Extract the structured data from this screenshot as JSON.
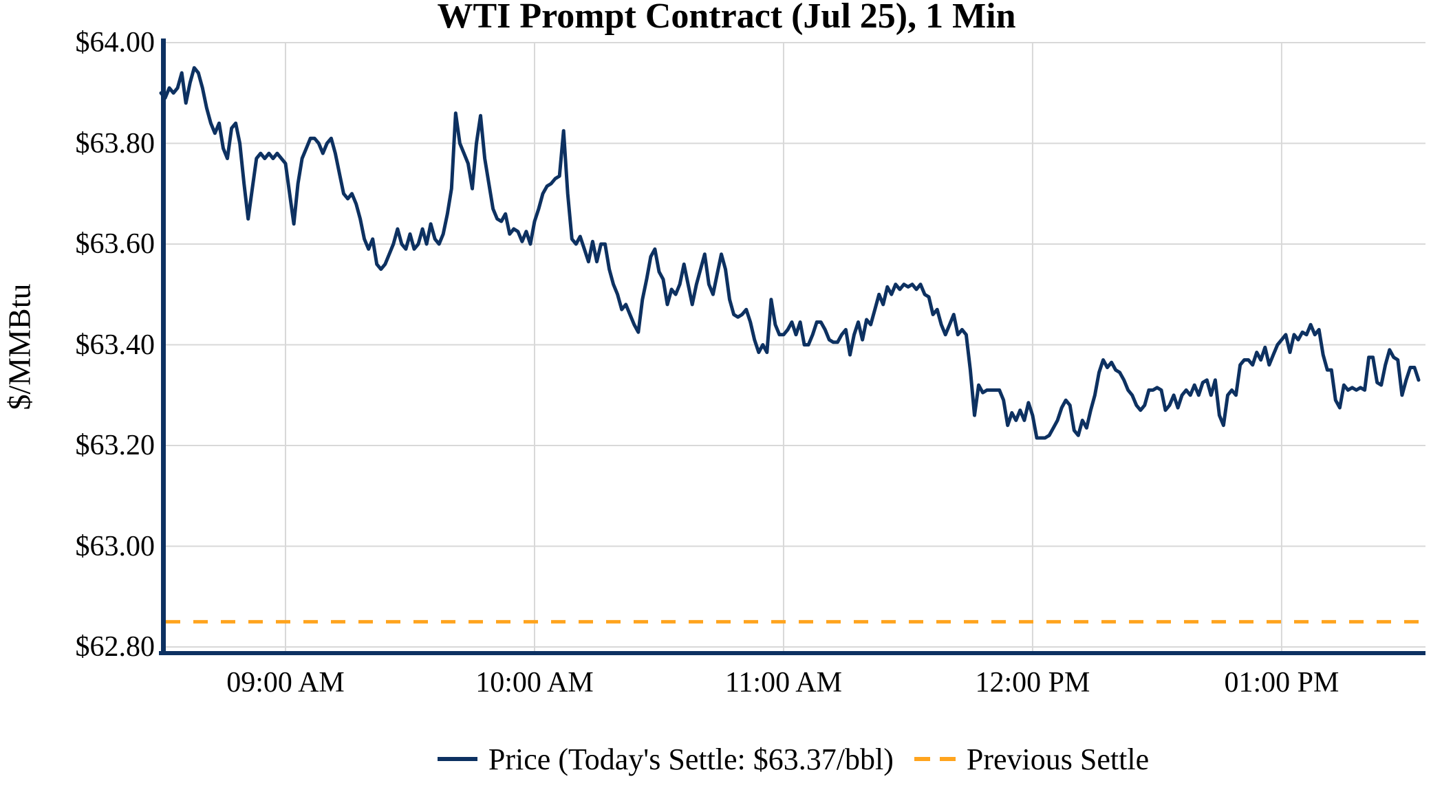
{
  "title": "WTI Prompt Contract (Jul 25), 1 Min",
  "y_axis_label": "$/MMBtu",
  "legend": {
    "price_label": "Price (Today's Settle: $63.37/bbl)",
    "previous_settle_label": "Previous Settle"
  },
  "colors": {
    "price_line": "#0d3161",
    "previous_settle_line": "#FFA41E",
    "gridline": "#d8d8d8",
    "axis_spine": "#0d3161",
    "text": "#000000",
    "background": "#ffffff"
  },
  "chart_data": {
    "type": "line",
    "title": "WTI Prompt Contract (Jul 25), 1 Min",
    "xlabel": "",
    "ylabel": "$/MMBtu",
    "ylim": [
      62.8,
      64.0
    ],
    "grid": true,
    "legend_position": "bottom",
    "y_tick_labels": [
      "$64.00",
      "$63.80",
      "$63.60",
      "$63.40",
      "$63.20",
      "$63.00",
      "$62.80"
    ],
    "y_tick_values": [
      64.0,
      63.8,
      63.6,
      63.4,
      63.2,
      63.0,
      62.8
    ],
    "x_tick_labels": [
      "09:00 AM",
      "10:00 AM",
      "11:00 AM",
      "12:00 PM",
      "01:00 PM"
    ],
    "x_tick_minutes": [
      30,
      90,
      150,
      210,
      270
    ],
    "x_start_time": "08:30 AM",
    "x_end_time": "01:33 PM",
    "x_interval_minutes": 1,
    "today_settle": 63.37,
    "previous_settle": 62.85,
    "series": [
      {
        "name": "Price (Today's Settle: $63.37/bbl)",
        "style": "solid",
        "values": [
          63.9,
          63.89,
          63.91,
          63.9,
          63.91,
          63.94,
          63.88,
          63.92,
          63.95,
          63.94,
          63.91,
          63.87,
          63.84,
          63.82,
          63.84,
          63.79,
          63.77,
          63.83,
          63.84,
          63.8,
          63.72,
          63.65,
          63.71,
          63.77,
          63.78,
          63.77,
          63.78,
          63.77,
          63.78,
          63.77,
          63.76,
          63.7,
          63.64,
          63.72,
          63.77,
          63.79,
          63.81,
          63.81,
          63.8,
          63.78,
          63.8,
          63.81,
          63.78,
          63.74,
          63.7,
          63.69,
          63.7,
          63.68,
          63.65,
          63.61,
          63.59,
          63.61,
          63.56,
          63.55,
          63.56,
          63.58,
          63.6,
          63.63,
          63.6,
          63.59,
          63.62,
          63.59,
          63.6,
          63.63,
          63.6,
          63.64,
          63.61,
          63.6,
          63.62,
          63.66,
          63.71,
          63.86,
          63.8,
          63.78,
          63.76,
          63.71,
          63.8,
          63.855,
          63.77,
          63.72,
          63.67,
          63.65,
          63.645,
          63.66,
          63.62,
          63.63,
          63.625,
          63.605,
          63.625,
          63.6,
          63.645,
          63.67,
          63.7,
          63.715,
          63.72,
          63.73,
          63.735,
          63.825,
          63.7,
          63.61,
          63.6,
          63.615,
          63.59,
          63.565,
          63.605,
          63.565,
          63.6,
          63.6,
          63.55,
          63.52,
          63.5,
          63.47,
          63.48,
          63.46,
          63.44,
          63.425,
          63.49,
          63.53,
          63.575,
          63.59,
          63.545,
          63.53,
          63.48,
          63.51,
          63.5,
          63.52,
          63.56,
          63.52,
          63.48,
          63.52,
          63.55,
          63.58,
          63.52,
          63.5,
          63.54,
          63.58,
          63.55,
          63.49,
          63.46,
          63.455,
          63.46,
          63.47,
          63.445,
          63.41,
          63.385,
          63.4,
          63.385,
          63.49,
          63.44,
          63.42,
          63.42,
          63.43,
          63.445,
          63.42,
          63.445,
          63.4,
          63.4,
          63.42,
          63.445,
          63.445,
          63.43,
          63.41,
          63.405,
          63.405,
          63.42,
          63.43,
          63.38,
          63.42,
          63.445,
          63.41,
          63.45,
          63.44,
          63.47,
          63.5,
          63.48,
          63.515,
          63.5,
          63.52,
          63.51,
          63.52,
          63.515,
          63.52,
          63.51,
          63.52,
          63.5,
          63.495,
          63.46,
          63.47,
          63.44,
          63.42,
          63.44,
          63.46,
          63.42,
          63.43,
          63.42,
          63.35,
          63.26,
          63.32,
          63.305,
          63.31,
          63.31,
          63.31,
          63.31,
          63.29,
          63.24,
          63.265,
          63.25,
          63.27,
          63.25,
          63.285,
          63.26,
          63.215,
          63.215,
          63.215,
          63.22,
          63.235,
          63.25,
          63.275,
          63.29,
          63.28,
          63.23,
          63.22,
          63.25,
          63.235,
          63.27,
          63.3,
          63.345,
          63.37,
          63.355,
          63.365,
          63.35,
          63.345,
          63.33,
          63.31,
          63.3,
          63.28,
          63.27,
          63.28,
          63.31,
          63.31,
          63.315,
          63.31,
          63.27,
          63.28,
          63.3,
          63.275,
          63.3,
          63.31,
          63.3,
          63.32,
          63.3,
          63.325,
          63.33,
          63.3,
          63.33,
          63.26,
          63.24,
          63.3,
          63.31,
          63.3,
          63.36,
          63.37,
          63.37,
          63.36,
          63.385,
          63.37,
          63.395,
          63.36,
          63.38,
          63.4,
          63.41,
          63.42,
          63.385,
          63.42,
          63.41,
          63.425,
          63.42,
          63.44,
          63.42,
          63.43,
          63.38,
          63.35,
          63.35,
          63.29,
          63.275,
          63.32,
          63.31,
          63.315,
          63.31,
          63.315,
          63.31,
          63.375,
          63.375,
          63.325,
          63.32,
          63.36,
          63.39,
          63.375,
          63.37,
          63.3,
          63.33,
          63.355,
          63.355,
          63.33
        ]
      },
      {
        "name": "Previous Settle",
        "style": "dashed",
        "value": 62.85
      }
    ]
  }
}
